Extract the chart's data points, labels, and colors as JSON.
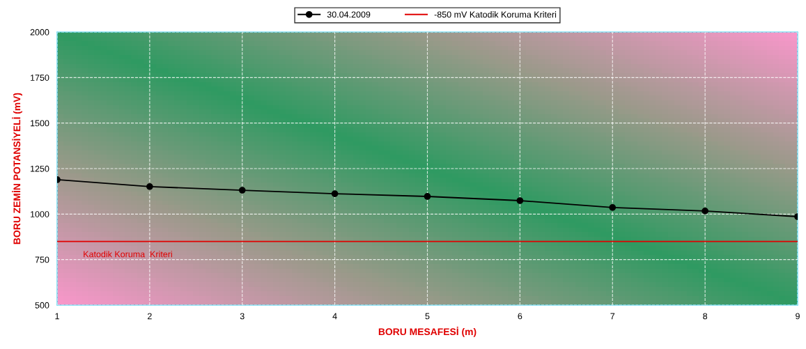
{
  "chart_data": {
    "type": "line",
    "xlabel": "BORU MESAFESİ (m)",
    "ylabel": "BORU ZEMİN POTANSİYELİ (mV)",
    "x": [
      1,
      2,
      3,
      4,
      5,
      6,
      7,
      8,
      9
    ],
    "series": [
      {
        "name": "30.04.2009",
        "color": "#000000",
        "values": [
          1189,
          1151,
          1131,
          1112,
          1097,
          1074,
          1036,
          1017,
          986
        ]
      }
    ],
    "ref_lines": [
      {
        "axis": "y",
        "value": 850,
        "label": "-850 mV Katodik Koruma Kriteri",
        "color": "#e00000",
        "line_style": "solid"
      }
    ],
    "annotations": [
      "Katodik Koruma  Kriteri"
    ],
    "xlim": [
      1,
      9
    ],
    "xticks": [
      1,
      2,
      3,
      4,
      5,
      6,
      7,
      8,
      9
    ],
    "ylim": [
      500,
      2000
    ],
    "yticks": [
      500,
      750,
      1000,
      1250,
      1500,
      1750,
      2000
    ],
    "grid": true,
    "legend": "top",
    "marker": "circle",
    "line_style": "solid"
  }
}
